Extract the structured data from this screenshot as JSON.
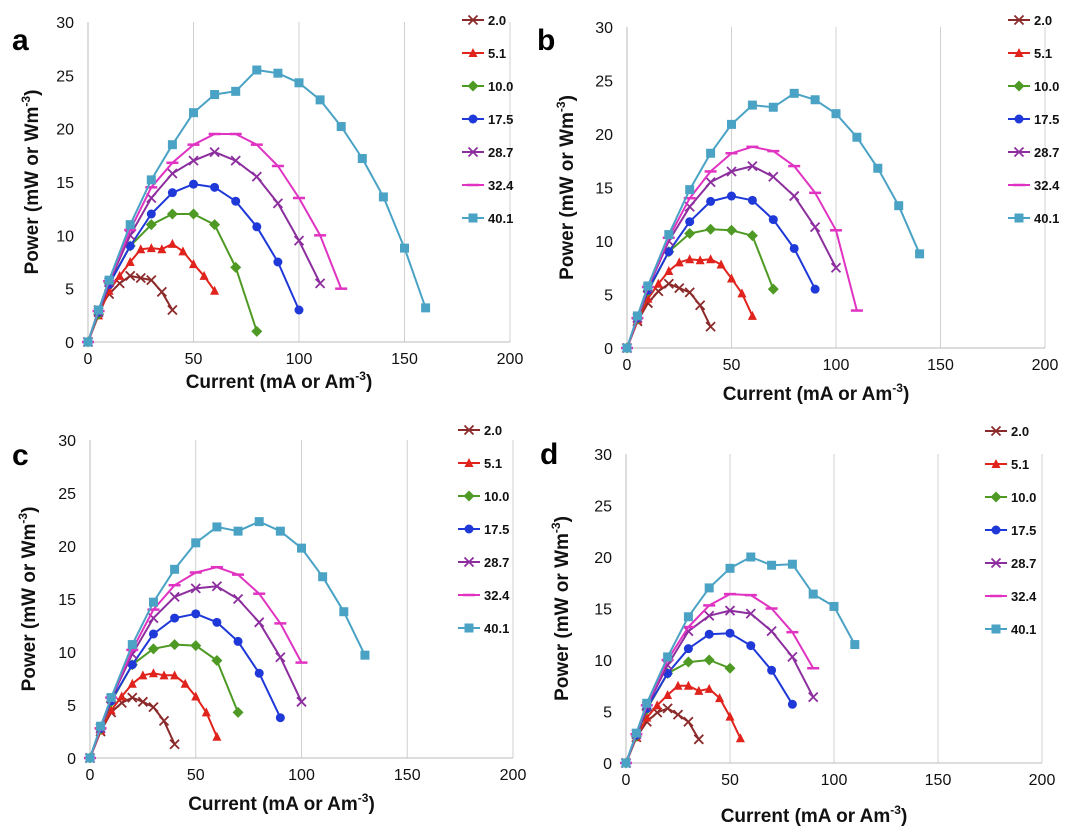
{
  "chart_data": [
    {
      "type": "line",
      "panel": "a",
      "xlabel": "Current (mA or Am",
      "xlabel_sup": "-3",
      "xlabel_end": ")",
      "ylabel": "Power (mW or Wm",
      "ylabel_sup": "-3",
      "ylabel_end": ")",
      "xlim": [
        0,
        200
      ],
      "ylim": [
        0,
        30
      ],
      "xticks": [
        "0",
        "50",
        "100",
        "150",
        "200"
      ],
      "yticks": [
        "0",
        "5",
        "10",
        "15",
        "20",
        "25",
        "30"
      ],
      "grid": "vertical",
      "legend": "right",
      "series": [
        {
          "name": "2.0",
          "color": "#8B2A2A",
          "marker": "x",
          "x": [
            0,
            5,
            10,
            15,
            20,
            25,
            30,
            35,
            40
          ],
          "y": [
            0,
            3,
            4.5,
            5.5,
            6.2,
            6,
            5.8,
            4.7,
            3
          ]
        },
        {
          "name": "5.1",
          "color": "#E0231C",
          "marker": "triangle",
          "x": [
            0,
            5,
            10,
            15,
            20,
            25,
            30,
            35,
            40,
            45,
            50,
            55,
            60
          ],
          "y": [
            0,
            2.5,
            4.8,
            6.2,
            7.5,
            8.7,
            8.8,
            8.7,
            9.2,
            8.5,
            7.3,
            6.2,
            4.8
          ]
        },
        {
          "name": "10.0",
          "color": "#4E9A24",
          "marker": "diamond",
          "x": [
            0,
            5,
            10,
            20,
            30,
            40,
            50,
            60,
            70,
            80
          ],
          "y": [
            0,
            2.6,
            5.5,
            9,
            11,
            12,
            12,
            11,
            7,
            1
          ]
        },
        {
          "name": "17.5",
          "color": "#1F39D9",
          "marker": "circle",
          "x": [
            0,
            5,
            10,
            20,
            30,
            40,
            50,
            60,
            70,
            80,
            90,
            100
          ],
          "y": [
            0,
            2.8,
            5.4,
            9,
            12,
            14,
            14.8,
            14.5,
            13.2,
            10.8,
            7.5,
            3
          ]
        },
        {
          "name": "28.7",
          "color": "#8C2E9E",
          "marker": "x",
          "x": [
            0,
            5,
            10,
            20,
            30,
            40,
            50,
            60,
            70,
            80,
            90,
            100,
            110
          ],
          "y": [
            0,
            2.8,
            5.6,
            10,
            13.5,
            15.8,
            17,
            17.8,
            17,
            15.5,
            13,
            9.5,
            5.5
          ]
        },
        {
          "name": "32.4",
          "color": "#E033C2",
          "marker": "dash",
          "x": [
            0,
            5,
            10,
            20,
            30,
            40,
            50,
            60,
            70,
            80,
            90,
            100,
            110,
            120
          ],
          "y": [
            0,
            2.9,
            5.7,
            10.5,
            14.5,
            16.8,
            18.5,
            19.5,
            19.5,
            18.5,
            16.5,
            13.5,
            10,
            5
          ]
        },
        {
          "name": "40.1",
          "color": "#4AA3C4",
          "marker": "square",
          "x": [
            0,
            5,
            10,
            20,
            30,
            40,
            50,
            60,
            70,
            80,
            90,
            100,
            110,
            120,
            130,
            140,
            150,
            160
          ],
          "y": [
            0,
            3,
            5.8,
            11,
            15.2,
            18.5,
            21.5,
            23.2,
            23.5,
            25.5,
            25.2,
            24.3,
            22.7,
            20.2,
            17.2,
            13.6,
            8.8,
            3.2
          ]
        }
      ]
    },
    {
      "type": "line",
      "panel": "b",
      "xlabel": "Current (mA or Am",
      "xlabel_sup": "-3",
      "xlabel_end": ")",
      "ylabel": "Power (mW or Wm",
      "ylabel_sup": "-3",
      "ylabel_end": ")",
      "xlim": [
        0,
        200
      ],
      "ylim": [
        0,
        30
      ],
      "xticks": [
        "0",
        "50",
        "100",
        "150",
        "200"
      ],
      "yticks": [
        "0",
        "5",
        "10",
        "15",
        "20",
        "25",
        "30"
      ],
      "grid": "vertical",
      "legend": "right",
      "series": [
        {
          "name": "2.0",
          "color": "#8B2A2A",
          "marker": "x",
          "x": [
            0,
            5,
            10,
            15,
            20,
            25,
            30,
            35,
            40
          ],
          "y": [
            0,
            2.5,
            4.2,
            5.3,
            6,
            5.6,
            5.2,
            4,
            2
          ]
        },
        {
          "name": "5.1",
          "color": "#E0231C",
          "marker": "triangle",
          "x": [
            0,
            5,
            10,
            15,
            20,
            25,
            30,
            35,
            40,
            45,
            50,
            55,
            60
          ],
          "y": [
            0,
            2.6,
            4.6,
            6,
            7.2,
            8,
            8.3,
            8.2,
            8.3,
            7.8,
            6.5,
            5.1,
            3
          ]
        },
        {
          "name": "10.0",
          "color": "#4E9A24",
          "marker": "diamond",
          "x": [
            0,
            5,
            10,
            20,
            30,
            40,
            50,
            60,
            70
          ],
          "y": [
            0,
            2.7,
            5.3,
            9,
            10.7,
            11.1,
            11,
            10.5,
            5.5
          ]
        },
        {
          "name": "17.5",
          "color": "#1F39D9",
          "marker": "circle",
          "x": [
            0,
            5,
            10,
            20,
            30,
            40,
            50,
            60,
            70,
            80,
            90
          ],
          "y": [
            0,
            2.8,
            5.4,
            9,
            11.8,
            13.7,
            14.2,
            13.8,
            12,
            9.3,
            5.5
          ]
        },
        {
          "name": "28.7",
          "color": "#8C2E9E",
          "marker": "x",
          "x": [
            0,
            5,
            10,
            20,
            30,
            40,
            50,
            60,
            70,
            80,
            90,
            100
          ],
          "y": [
            0,
            2.8,
            5.6,
            10,
            13.2,
            15.5,
            16.5,
            17,
            16,
            14.2,
            11.3,
            7.5
          ]
        },
        {
          "name": "32.4",
          "color": "#E033C2",
          "marker": "dash",
          "x": [
            0,
            5,
            10,
            20,
            30,
            40,
            50,
            60,
            70,
            80,
            90,
            100,
            110
          ],
          "y": [
            0,
            2.8,
            5.7,
            10.3,
            14,
            16.5,
            18.2,
            18.8,
            18.4,
            17,
            14.5,
            11,
            3.5
          ]
        },
        {
          "name": "40.1",
          "color": "#4AA3C4",
          "marker": "square",
          "x": [
            0,
            5,
            10,
            20,
            30,
            40,
            50,
            60,
            70,
            80,
            90,
            100,
            110,
            120,
            130,
            140
          ],
          "y": [
            0,
            3,
            5.8,
            10.6,
            14.8,
            18.2,
            20.9,
            22.7,
            22.5,
            23.8,
            23.2,
            21.9,
            19.7,
            16.8,
            13.3,
            8.8
          ]
        }
      ]
    },
    {
      "type": "line",
      "panel": "c",
      "xlabel": "Current (mA or Am",
      "xlabel_sup": "-3",
      "xlabel_end": ")",
      "ylabel": "Power (mW or Wm",
      "ylabel_sup": "-3",
      "ylabel_end": ")",
      "xlim": [
        0,
        200
      ],
      "ylim": [
        0,
        30
      ],
      "xticks": [
        "0",
        "50",
        "100",
        "150",
        "200"
      ],
      "yticks": [
        "0",
        "5",
        "10",
        "15",
        "20",
        "25",
        "30"
      ],
      "grid": "vertical",
      "legend": "right",
      "series": [
        {
          "name": "2.0",
          "color": "#8B2A2A",
          "marker": "x",
          "x": [
            0,
            5,
            10,
            15,
            20,
            25,
            30,
            35,
            40
          ],
          "y": [
            0,
            2.5,
            4.3,
            5.2,
            5.7,
            5.3,
            4.8,
            3.5,
            1.3
          ]
        },
        {
          "name": "5.1",
          "color": "#E0231C",
          "marker": "triangle",
          "x": [
            0,
            5,
            10,
            15,
            20,
            25,
            30,
            35,
            40,
            45,
            50,
            55,
            60
          ],
          "y": [
            0,
            2.6,
            4.5,
            5.8,
            7,
            7.8,
            8,
            7.8,
            7.8,
            7,
            5.8,
            4.3,
            2
          ]
        },
        {
          "name": "10.0",
          "color": "#4E9A24",
          "marker": "diamond",
          "x": [
            0,
            5,
            10,
            20,
            30,
            40,
            50,
            60,
            70
          ],
          "y": [
            0,
            2.7,
            5.3,
            8.8,
            10.3,
            10.7,
            10.6,
            9.2,
            4.3
          ]
        },
        {
          "name": "17.5",
          "color": "#1F39D9",
          "marker": "circle",
          "x": [
            0,
            5,
            10,
            20,
            30,
            40,
            50,
            60,
            70,
            80,
            90
          ],
          "y": [
            0,
            2.8,
            5.4,
            8.8,
            11.7,
            13.2,
            13.6,
            12.8,
            11,
            8,
            3.8
          ]
        },
        {
          "name": "28.7",
          "color": "#8C2E9E",
          "marker": "x",
          "x": [
            0,
            5,
            10,
            20,
            30,
            40,
            50,
            60,
            70,
            80,
            90,
            100
          ],
          "y": [
            0,
            2.8,
            5.6,
            9.8,
            13.2,
            15.2,
            16,
            16.2,
            15,
            12.8,
            9.5,
            5.3
          ]
        },
        {
          "name": "32.4",
          "color": "#E033C2",
          "marker": "dash",
          "x": [
            0,
            5,
            10,
            20,
            30,
            40,
            50,
            60,
            70,
            80,
            90,
            100
          ],
          "y": [
            0,
            2.8,
            5.7,
            10.2,
            14,
            16.3,
            17.5,
            18,
            17.3,
            15.5,
            12.7,
            9
          ]
        },
        {
          "name": "40.1",
          "color": "#4AA3C4",
          "marker": "square",
          "x": [
            0,
            5,
            10,
            20,
            30,
            40,
            50,
            60,
            70,
            80,
            90,
            100,
            110,
            120,
            130
          ],
          "y": [
            0,
            3,
            5.7,
            10.7,
            14.7,
            17.8,
            20.3,
            21.8,
            21.4,
            22.3,
            21.4,
            19.8,
            17.1,
            13.8,
            9.7
          ]
        }
      ]
    },
    {
      "type": "line",
      "panel": "d",
      "xlabel": "Current (mA or Am",
      "xlabel_sup": "-3",
      "xlabel_end": ")",
      "ylabel": "Power (mW or Wm",
      "ylabel_sup": "-3",
      "ylabel_end": ")",
      "xlim": [
        0,
        200
      ],
      "ylim": [
        0,
        30
      ],
      "xticks": [
        "0",
        "50",
        "100",
        "150",
        "200"
      ],
      "yticks": [
        "0",
        "5",
        "10",
        "15",
        "20",
        "25",
        "30"
      ],
      "grid": "vertical",
      "legend": "right",
      "series": [
        {
          "name": "2.0",
          "color": "#8B2A2A",
          "marker": "x",
          "x": [
            0,
            5,
            10,
            15,
            20,
            25,
            30,
            35
          ],
          "y": [
            0,
            2.5,
            4,
            4.9,
            5.3,
            4.7,
            4,
            2.3
          ]
        },
        {
          "name": "5.1",
          "color": "#E0231C",
          "marker": "triangle",
          "x": [
            0,
            5,
            10,
            15,
            20,
            25,
            30,
            35,
            40,
            45,
            50,
            55
          ],
          "y": [
            0,
            2.5,
            4.4,
            5.6,
            6.6,
            7.5,
            7.5,
            7,
            7.2,
            6.3,
            4.5,
            2.4
          ]
        },
        {
          "name": "10.0",
          "color": "#4E9A24",
          "marker": "diamond",
          "x": [
            0,
            5,
            10,
            20,
            30,
            40,
            50
          ],
          "y": [
            0,
            2.6,
            5.2,
            8.7,
            9.8,
            10,
            9.2
          ]
        },
        {
          "name": "17.5",
          "color": "#1F39D9",
          "marker": "circle",
          "x": [
            0,
            5,
            10,
            20,
            30,
            40,
            50,
            60,
            70,
            80
          ],
          "y": [
            0,
            2.7,
            5.3,
            8.7,
            11.1,
            12.5,
            12.6,
            11.4,
            9,
            5.7
          ]
        },
        {
          "name": "28.7",
          "color": "#8C2E9E",
          "marker": "x",
          "x": [
            0,
            5,
            10,
            20,
            30,
            40,
            50,
            60,
            70,
            80,
            90
          ],
          "y": [
            0,
            2.8,
            5.5,
            9.5,
            12.8,
            14.3,
            14.8,
            14.5,
            12.8,
            10.3,
            6.4
          ]
        },
        {
          "name": "32.4",
          "color": "#E033C2",
          "marker": "dash",
          "x": [
            0,
            5,
            10,
            20,
            30,
            40,
            50,
            60,
            70,
            80,
            90
          ],
          "y": [
            0,
            2.8,
            5.6,
            10,
            13.2,
            15.3,
            16.4,
            16.3,
            15,
            12.7,
            9.2
          ]
        },
        {
          "name": "40.1",
          "color": "#4AA3C4",
          "marker": "square",
          "x": [
            0,
            5,
            10,
            20,
            30,
            40,
            50,
            60,
            70,
            80,
            90,
            100,
            110
          ],
          "y": [
            0,
            2.9,
            5.8,
            10.3,
            14.2,
            17,
            18.9,
            20,
            19.2,
            19.3,
            16.4,
            15.2,
            11.5
          ]
        }
      ]
    }
  ]
}
